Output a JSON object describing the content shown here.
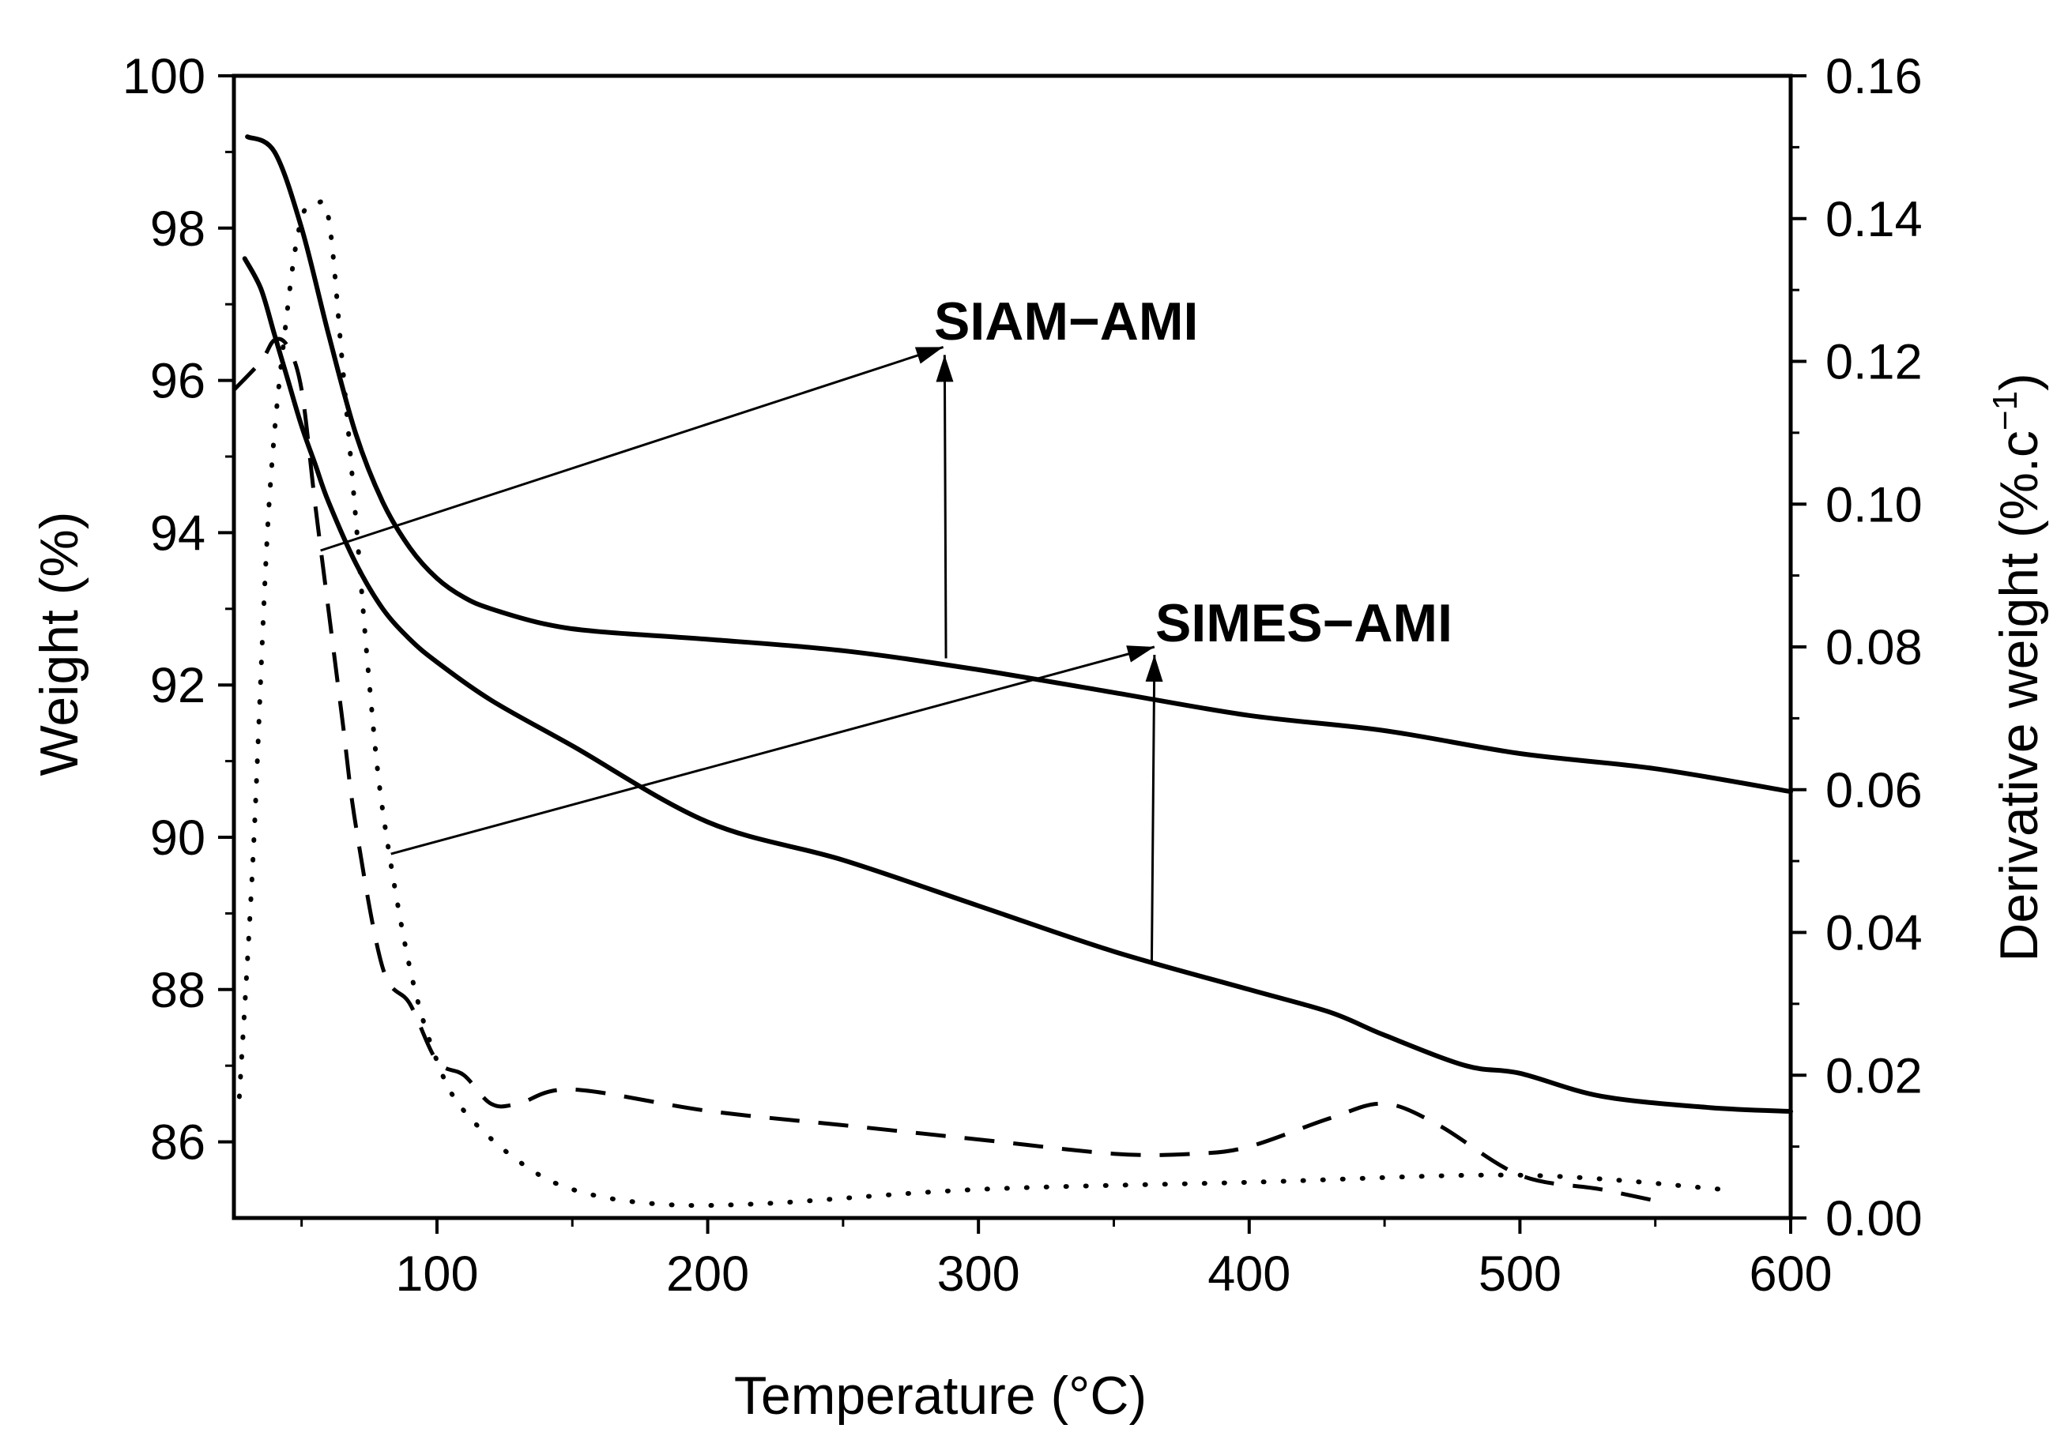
{
  "chart_data": {
    "type": "line",
    "xlabel": "Temperature (°C)",
    "ylabel_left": "Weight (%)",
    "ylabel_right": "Derivative weight (%.c",
    "ylabel_right_sup": "−1",
    "ylabel_right_close": ")",
    "xlim": [
      25,
      600
    ],
    "ylim_left": [
      85,
      100
    ],
    "ylim_right": [
      0.0,
      0.16
    ],
    "x_ticks": [
      100,
      200,
      300,
      400,
      500,
      600
    ],
    "x_tick_labels": [
      "100",
      "200",
      "300",
      "400",
      "500",
      "600"
    ],
    "y_left_ticks": [
      86,
      88,
      90,
      92,
      94,
      96,
      98,
      100
    ],
    "y_left_tick_labels": [
      "86",
      "88",
      "90",
      "92",
      "94",
      "96",
      "98",
      "100"
    ],
    "y_right_ticks": [
      0.0,
      0.02,
      0.04,
      0.06,
      0.08,
      0.1,
      0.12,
      0.14,
      0.16
    ],
    "y_right_tick_labels": [
      "0.00",
      "0.02",
      "0.04",
      "0.06",
      "0.08",
      "0.10",
      "0.12",
      "0.14",
      "0.16"
    ],
    "annotations": [
      {
        "label": "SIAM−AMI",
        "points_to": [
          287,
          0.122
        ]
      },
      {
        "label": "SIMES−AMI",
        "points_to": [
          365,
          0.08
        ]
      }
    ],
    "series": [
      {
        "name": "SIAM-AMI weight",
        "axis": "left",
        "style": "solid",
        "x": [
          30,
          40,
          50,
          60,
          70,
          80,
          90,
          100,
          110,
          120,
          140,
          160,
          200,
          250,
          300,
          350,
          400,
          450,
          500,
          550,
          600
        ],
        "y": [
          99.2,
          99.0,
          98.0,
          96.6,
          95.3,
          94.4,
          93.8,
          93.4,
          93.15,
          93.0,
          92.8,
          92.7,
          92.6,
          92.45,
          92.2,
          91.9,
          91.6,
          91.4,
          91.1,
          90.9,
          90.6
        ]
      },
      {
        "name": "SIMES-AMI weight",
        "axis": "left",
        "style": "solid",
        "x": [
          29,
          35,
          40,
          45,
          50,
          55,
          60,
          70,
          80,
          90,
          100,
          120,
          150,
          200,
          250,
          300,
          350,
          400,
          430,
          450,
          480,
          500,
          530,
          570,
          600
        ],
        "y": [
          97.6,
          97.2,
          96.6,
          96.0,
          95.4,
          94.9,
          94.4,
          93.6,
          93.0,
          92.6,
          92.3,
          91.8,
          91.2,
          90.2,
          89.7,
          89.1,
          88.5,
          88.0,
          87.7,
          87.4,
          87.0,
          86.9,
          86.6,
          86.45,
          86.4
        ]
      },
      {
        "name": "SIAM-AMI derivative",
        "axis": "right",
        "style": "dotted",
        "x": [
          27,
          32,
          38,
          45,
          50,
          55,
          60,
          65,
          70,
          75,
          80,
          90,
          100,
          110,
          130,
          150,
          180,
          220,
          300,
          400,
          500,
          575
        ],
        "y": [
          0.017,
          0.05,
          0.1,
          0.128,
          0.14,
          0.142,
          0.14,
          0.12,
          0.098,
          0.075,
          0.057,
          0.035,
          0.022,
          0.015,
          0.008,
          0.004,
          0.002,
          0.002,
          0.004,
          0.005,
          0.006,
          0.004
        ]
      },
      {
        "name": "SIMES-AMI derivative",
        "axis": "right",
        "style": "dashed",
        "x": [
          25,
          35,
          40,
          45,
          50,
          55,
          60,
          65,
          70,
          80,
          90,
          100,
          110,
          120,
          130,
          150,
          200,
          250,
          300,
          350,
          380,
          400,
          430,
          450,
          470,
          500,
          530,
          555
        ],
        "y": [
          0.116,
          0.12,
          0.123,
          0.122,
          0.116,
          0.1,
          0.085,
          0.07,
          0.055,
          0.035,
          0.03,
          0.022,
          0.02,
          0.016,
          0.016,
          0.018,
          0.015,
          0.013,
          0.011,
          0.009,
          0.009,
          0.01,
          0.014,
          0.016,
          0.013,
          0.006,
          0.004,
          0.002
        ]
      }
    ]
  }
}
